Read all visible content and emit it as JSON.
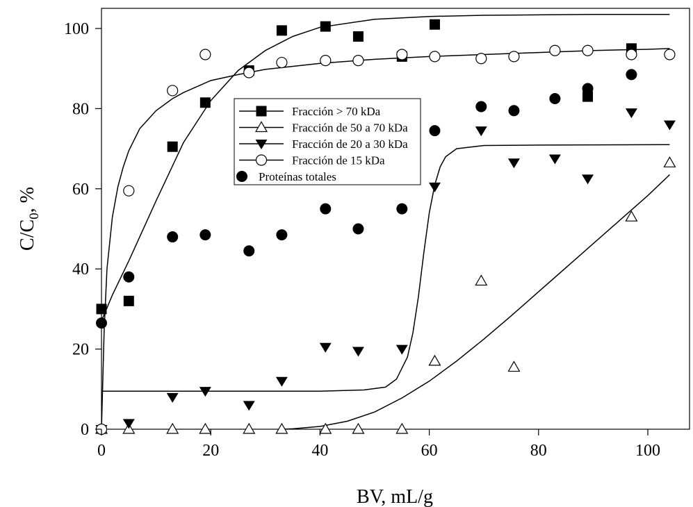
{
  "chart_data": {
    "type": "scatter",
    "title": "",
    "xlabel": "BV, mL/g",
    "ylabel_parts": {
      "main": "C/C",
      "sub": "0",
      "suffix": ", %"
    },
    "xlim": [
      0,
      105
    ],
    "ylim": [
      0,
      105
    ],
    "x_ticks": [
      0,
      20,
      40,
      60,
      80,
      100
    ],
    "y_ticks": [
      0,
      20,
      40,
      60,
      80,
      100
    ],
    "grid": false,
    "legend_position": "upper-center",
    "series": [
      {
        "name": "Fracción > 70 kDa",
        "marker": "square-filled",
        "x": [
          0,
          5,
          13,
          19,
          27,
          33,
          41,
          47,
          55,
          61,
          89,
          97
        ],
        "y": [
          30,
          32,
          70.5,
          81.5,
          89.5,
          99.5,
          100.5,
          98,
          93,
          101,
          83,
          95
        ],
        "fit": {
          "x": [
            0,
            2,
            5,
            10,
            15,
            20,
            25,
            30,
            35,
            40,
            50,
            60,
            70,
            80,
            90,
            100,
            104
          ],
          "y": [
            27,
            33.5,
            42,
            57,
            71.5,
            82,
            89.5,
            94.5,
            98,
            100.3,
            102.3,
            103,
            103.3,
            103.4,
            103.5,
            103.5,
            103.5
          ]
        }
      },
      {
        "name": "Fracción de 50 a 70 kDa",
        "marker": "triangle-up-open",
        "x": [
          0,
          5,
          13,
          19,
          27,
          33,
          41,
          47,
          55,
          61,
          69.5,
          75.5,
          97,
          104
        ],
        "y": [
          0,
          0,
          0,
          0,
          0,
          0,
          0,
          0,
          0,
          17,
          37,
          15.5,
          53,
          66.5
        ],
        "fit": {
          "x": [
            33,
            35,
            40,
            45,
            50,
            55,
            60,
            65,
            70,
            75,
            80,
            85,
            90,
            95,
            100,
            104
          ],
          "y": [
            0,
            0.1,
            0.7,
            2,
            4.3,
            7.8,
            12,
            17,
            22.5,
            28.3,
            34.3,
            40.3,
            46.3,
            52.3,
            58.3,
            63.5
          ]
        }
      },
      {
        "name": "Fracción de 20 a 30 kDa",
        "marker": "triangle-down-filled",
        "x": [
          0,
          5,
          13,
          19,
          27,
          33,
          41,
          47,
          55,
          61,
          69.5,
          75.5,
          83,
          89,
          97,
          104
        ],
        "y": [
          0,
          1.5,
          8,
          9.5,
          6,
          12,
          20.5,
          19.5,
          20,
          60.5,
          74.5,
          66.5,
          67.5,
          62.5,
          79,
          76
        ],
        "fit": {
          "x": [
            0,
            40,
            48,
            52,
            54,
            56,
            57,
            58,
            59,
            60,
            61,
            62,
            63,
            65,
            70,
            80,
            104
          ],
          "y": [
            9.5,
            9.5,
            9.8,
            10.5,
            12.5,
            18,
            24,
            33,
            44,
            54,
            61,
            65.5,
            68,
            70,
            70.8,
            70.9,
            71
          ]
        }
      },
      {
        "name": "Fracción de 15 kDa",
        "marker": "circle-open",
        "x": [
          0,
          5,
          13,
          19,
          27,
          33,
          41,
          47,
          55,
          61,
          69.5,
          75.5,
          83,
          89,
          97,
          104
        ],
        "y": [
          0,
          59.5,
          84.5,
          93.5,
          89,
          91.5,
          92,
          92,
          93.5,
          93,
          92.5,
          93,
          94.5,
          94.5,
          93.5,
          93.5
        ],
        "fit": {
          "x": [
            0,
            0.5,
            1,
            2,
            3,
            4,
            5,
            7,
            10,
            13,
            15,
            20,
            25,
            30,
            40,
            50,
            60,
            70,
            80,
            90,
            100,
            104
          ],
          "y": [
            0,
            25,
            40,
            53,
            60.5,
            65.5,
            69.5,
            75,
            79.5,
            82.5,
            84,
            87,
            88.5,
            89.8,
            91.3,
            92.3,
            93,
            93.5,
            94,
            94.5,
            94.8,
            95
          ]
        }
      },
      {
        "name": "Proteínas totales",
        "marker": "circle-filled",
        "x": [
          0,
          5,
          13,
          19,
          27,
          33,
          41,
          47,
          55,
          61,
          69.5,
          75.5,
          83,
          89,
          97
        ],
        "y": [
          26.5,
          38,
          48,
          48.5,
          44.5,
          48.5,
          55,
          50,
          55,
          74.5,
          80.5,
          79.5,
          82.5,
          85,
          88.5
        ]
      }
    ]
  }
}
